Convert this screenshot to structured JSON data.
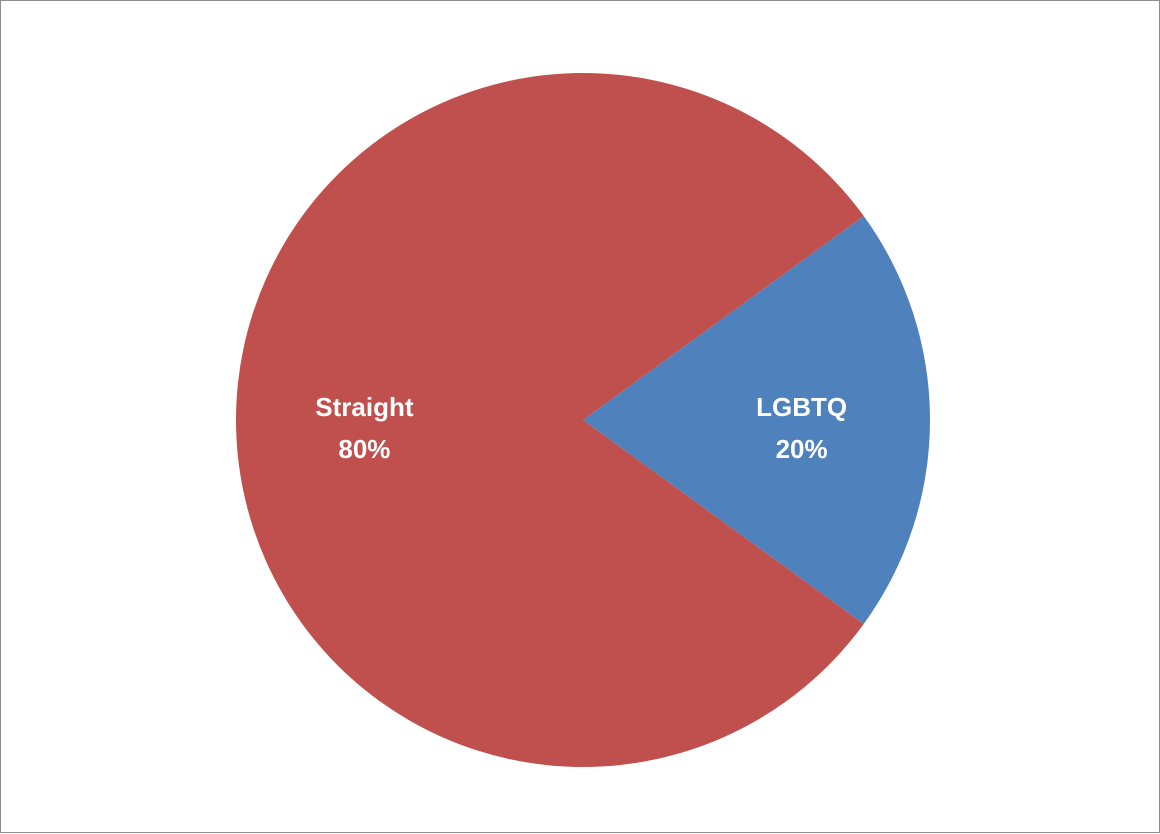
{
  "chart_data": {
    "type": "pie",
    "slices": [
      {
        "label": "LGBTQ",
        "value": 20,
        "value_label": "20%",
        "color": "#4f81bd"
      },
      {
        "label": "Straight",
        "value": 80,
        "value_label": "80%",
        "color": "#c0504d"
      }
    ],
    "title": "",
    "legend": "none",
    "data_labels": "inside"
  }
}
